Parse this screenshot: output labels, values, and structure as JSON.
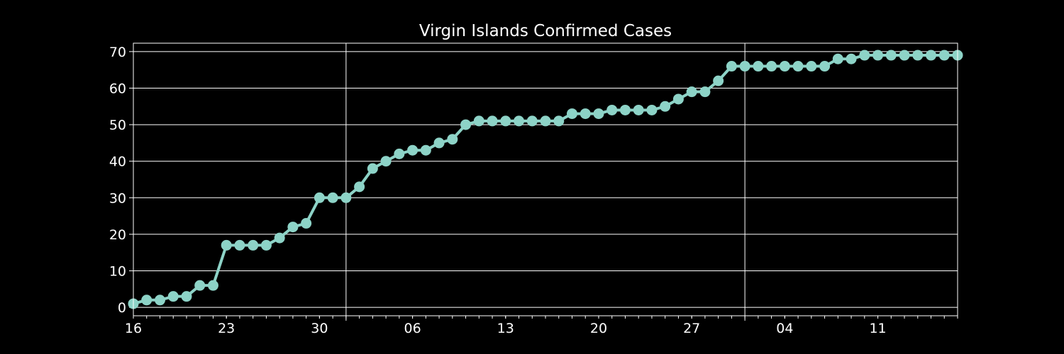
{
  "chart_data": {
    "type": "line",
    "title": "Virgin Islands Confirmed Cases",
    "xlabel": "",
    "ylabel": "",
    "x_start_date": "2020-03-16",
    "x_tick_labels": [
      "16",
      "23",
      "30",
      "06",
      "13",
      "20",
      "27",
      "04",
      "11"
    ],
    "ylim": [
      -2.3,
      72.3
    ],
    "y_ticks": [
      0,
      10,
      20,
      30,
      40,
      50,
      60,
      70
    ],
    "grid": true,
    "series": [
      {
        "name": "",
        "color": "#8dd3c7",
        "values": [
          1,
          2,
          2,
          3,
          3,
          6,
          6,
          17,
          17,
          17,
          17,
          19,
          22,
          23,
          30,
          30,
          30,
          33,
          38,
          40,
          42,
          43,
          43,
          45,
          46,
          50,
          51,
          51,
          51,
          51,
          51,
          51,
          51,
          53,
          53,
          53,
          54,
          54,
          54,
          54,
          55,
          57,
          59,
          59,
          62,
          66,
          66,
          66,
          66,
          66,
          66,
          66,
          66,
          68,
          68,
          69,
          69,
          69,
          69,
          69,
          69,
          69,
          69
        ]
      }
    ]
  }
}
